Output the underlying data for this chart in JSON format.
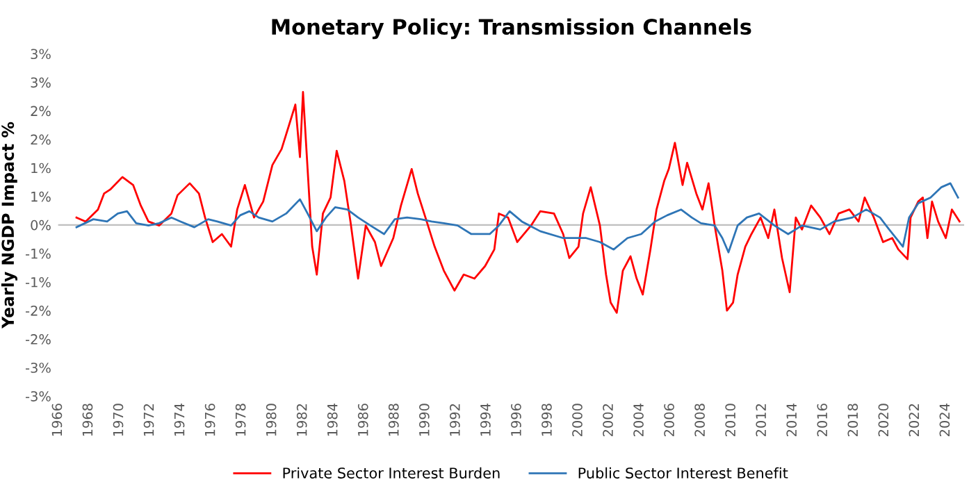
{
  "chart_data": {
    "type": "line",
    "title": "Monetary Policy: Transmission Channels",
    "ylabel": "Yearly NGDP Impact %",
    "xlim": [
      1966,
      2025.2
    ],
    "xticks": [
      1966,
      1968,
      1970,
      1972,
      1974,
      1976,
      1978,
      1980,
      1982,
      1984,
      1986,
      1988,
      1990,
      1992,
      1994,
      1996,
      1998,
      2000,
      2002,
      2004,
      2006,
      2008,
      2010,
      2012,
      2014,
      2016,
      2018,
      2020,
      2022,
      2024
    ],
    "ylim": [
      -3,
      3
    ],
    "yticks": [
      {
        "value": -3,
        "label": "-3%"
      },
      {
        "value": -2.5,
        "label": "-3%"
      },
      {
        "value": -2,
        "label": "-2%"
      },
      {
        "value": -1.5,
        "label": "-2%"
      },
      {
        "value": -1,
        "label": "-1%"
      },
      {
        "value": -0.5,
        "label": "-1%"
      },
      {
        "value": 0,
        "label": "0%"
      },
      {
        "value": 0.5,
        "label": "1%"
      },
      {
        "value": 1,
        "label": "1%"
      },
      {
        "value": 1.5,
        "label": "2%"
      },
      {
        "value": 2,
        "label": "2%"
      },
      {
        "value": 2.5,
        "label": "3%"
      },
      {
        "value": 3,
        "label": "3%"
      }
    ],
    "ref_lines": [
      {
        "axis": "y",
        "value": 0,
        "color": "#bfbfbf"
      }
    ],
    "legend": "bottom",
    "grid": false,
    "series": [
      {
        "name": "Private Sector Interest Burden",
        "color": "#ff0000",
        "x": [
          1967.2,
          1967.8,
          1968.6,
          1969.0,
          1969.4,
          1970.2,
          1970.9,
          1971.4,
          1971.9,
          1972.6,
          1973.4,
          1973.8,
          1974.6,
          1975.2,
          1975.6,
          1976.1,
          1976.7,
          1977.3,
          1977.7,
          1978.2,
          1978.8,
          1979.4,
          1980.0,
          1980.6,
          1981.1,
          1981.5,
          1981.8,
          1982.0,
          1982.3,
          1982.6,
          1982.9,
          1983.3,
          1983.8,
          1984.2,
          1984.7,
          1985.1,
          1985.6,
          1986.1,
          1986.7,
          1987.1,
          1987.9,
          1988.4,
          1989.1,
          1989.5,
          1990.0,
          1990.6,
          1991.2,
          1991.9,
          1992.5,
          1993.2,
          1993.9,
          1994.5,
          1994.8,
          1995.4,
          1996.0,
          1996.9,
          1997.5,
          1998.4,
          1999.0,
          1999.4,
          2000.0,
          2000.3,
          2000.8,
          2001.4,
          2001.8,
          2002.1,
          2002.5,
          2002.9,
          2003.4,
          2003.8,
          2004.2,
          2004.7,
          2005.1,
          2005.6,
          2005.9,
          2006.3,
          2006.8,
          2007.1,
          2007.7,
          2008.1,
          2008.5,
          2008.9,
          2009.4,
          2009.7,
          2010.1,
          2010.4,
          2010.9,
          2011.3,
          2011.9,
          2012.4,
          2012.8,
          2013.3,
          2013.8,
          2014.2,
          2014.6,
          2015.2,
          2015.8,
          2016.4,
          2017.0,
          2017.7,
          2018.3,
          2018.7,
          2019.3,
          2019.9,
          2020.5,
          2020.9,
          2021.5,
          2021.7,
          2022.2,
          2022.5,
          2022.8,
          2023.1,
          2023.5,
          2024.0,
          2024.4,
          2024.9
        ],
        "values": [
          0.13,
          0.06,
          0.27,
          0.55,
          0.62,
          0.84,
          0.7,
          0.34,
          0.06,
          -0.01,
          0.2,
          0.52,
          0.73,
          0.55,
          0.13,
          -0.3,
          -0.16,
          -0.38,
          0.27,
          0.7,
          0.13,
          0.41,
          1.05,
          1.33,
          1.76,
          2.11,
          1.19,
          2.33,
          0.98,
          -0.38,
          -0.87,
          0.2,
          0.48,
          1.3,
          0.77,
          0.06,
          -0.94,
          -0.01,
          -0.3,
          -0.72,
          -0.23,
          0.34,
          0.98,
          0.55,
          0.13,
          -0.38,
          -0.8,
          -1.15,
          -0.87,
          -0.94,
          -0.72,
          -0.43,
          0.2,
          0.13,
          -0.3,
          -0.01,
          0.24,
          0.2,
          -0.16,
          -0.58,
          -0.38,
          0.2,
          0.66,
          -0.01,
          -0.87,
          -1.36,
          -1.54,
          -0.8,
          -0.55,
          -0.94,
          -1.22,
          -0.43,
          0.27,
          0.77,
          0.98,
          1.44,
          0.7,
          1.09,
          0.55,
          0.27,
          0.73,
          -0.01,
          -0.8,
          -1.5,
          -1.36,
          -0.87,
          -0.38,
          -0.16,
          0.13,
          -0.23,
          0.27,
          -0.58,
          -1.18,
          0.13,
          -0.08,
          0.34,
          0.13,
          -0.16,
          0.2,
          0.27,
          0.06,
          0.48,
          0.13,
          -0.3,
          -0.23,
          -0.43,
          -0.6,
          0.13,
          0.41,
          0.48,
          -0.23,
          0.41,
          0.06,
          -0.23,
          0.27,
          0.06
        ]
      },
      {
        "name": "Public Sector Interest Benefit",
        "color": "#2e75b6",
        "x": [
          1967.2,
          1968.3,
          1969.2,
          1969.9,
          1970.5,
          1971.1,
          1971.9,
          1972.6,
          1973.4,
          1974.0,
          1974.9,
          1975.8,
          1976.4,
          1977.3,
          1977.9,
          1978.5,
          1979.1,
          1980.0,
          1980.9,
          1981.8,
          1982.3,
          1982.9,
          1983.5,
          1984.1,
          1984.9,
          1985.6,
          1986.4,
          1987.3,
          1988.0,
          1988.8,
          1989.7,
          1990.4,
          1991.2,
          1992.1,
          1993.0,
          1993.9,
          1994.2,
          1994.8,
          1995.5,
          1996.3,
          1997.5,
          1999.0,
          2000.5,
          2001.4,
          2002.3,
          2003.2,
          2004.1,
          2005.0,
          2005.8,
          2006.7,
          2007.4,
          2008.0,
          2008.9,
          2009.4,
          2009.8,
          2010.4,
          2011.0,
          2011.8,
          2012.8,
          2013.7,
          2014.6,
          2015.8,
          2016.7,
          2017.9,
          2018.8,
          2019.7,
          2020.3,
          2021.2,
          2021.6,
          2022.2,
          2023.0,
          2023.7,
          2024.3,
          2024.8
        ],
        "values": [
          -0.04,
          0.1,
          0.06,
          0.2,
          0.24,
          0.03,
          -0.01,
          0.03,
          0.13,
          0.06,
          -0.04,
          0.1,
          0.06,
          -0.01,
          0.17,
          0.24,
          0.13,
          0.06,
          0.2,
          0.45,
          0.2,
          -0.11,
          0.13,
          0.31,
          0.27,
          0.13,
          -0.01,
          -0.16,
          0.1,
          0.13,
          0.1,
          0.06,
          0.03,
          -0.01,
          -0.16,
          -0.16,
          -0.16,
          -0.01,
          0.24,
          0.06,
          -0.11,
          -0.23,
          -0.23,
          -0.3,
          -0.43,
          -0.23,
          -0.16,
          0.06,
          0.17,
          0.27,
          0.13,
          0.03,
          -0.01,
          -0.23,
          -0.48,
          -0.01,
          0.13,
          0.2,
          -0.01,
          -0.16,
          -0.01,
          -0.08,
          0.06,
          0.13,
          0.27,
          0.13,
          -0.08,
          -0.38,
          0.13,
          0.38,
          0.48,
          0.66,
          0.73,
          0.48
        ]
      }
    ]
  }
}
